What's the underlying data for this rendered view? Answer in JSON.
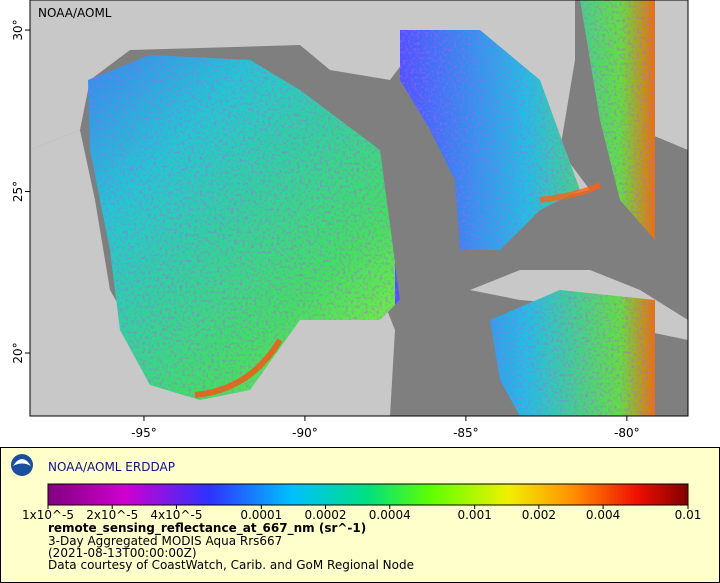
{
  "map": {
    "label": "NOAA/AOML",
    "xlim": [
      -98.54,
      -78.1
    ],
    "ylim": [
      18.05,
      30.93
    ],
    "lon_ticks": [
      {
        "value": -95,
        "label": "-95°"
      },
      {
        "value": -90,
        "label": "-90°"
      },
      {
        "value": -85,
        "label": "-85°"
      },
      {
        "value": -80,
        "label": "-80°"
      }
    ],
    "lat_ticks": [
      {
        "value": 20,
        "label": "20°"
      },
      {
        "value": 25,
        "label": "25°"
      },
      {
        "value": 30,
        "label": "30°"
      }
    ]
  },
  "legend": {
    "title": "NOAA/AOML ERDDAP",
    "range": [
      1e-05,
      0.01
    ],
    "ticks": [
      {
        "value": 1e-05,
        "label": "1x10^-5"
      },
      {
        "value": 2e-05,
        "label": "2x10^-5"
      },
      {
        "value": 4e-05,
        "label": "4x10^-5"
      },
      {
        "value": 0.0001,
        "label": "0.0001"
      },
      {
        "value": 0.0002,
        "label": "0.0002"
      },
      {
        "value": 0.0004,
        "label": "0.0004"
      },
      {
        "value": 0.001,
        "label": "0.001"
      },
      {
        "value": 0.002,
        "label": "0.002"
      },
      {
        "value": 0.004,
        "label": "0.004"
      },
      {
        "value": 0.01,
        "label": "0.01"
      }
    ],
    "caption": [
      "remote_sensing_reflectance_at_667_nm (sr^-1)",
      "3-Day Aggregated MODIS Aqua Rrs667",
      "(2021-08-13T00:00:00Z)",
      "Data courtesy of CoastWatch, Carib. and GoM Regional Node"
    ]
  }
}
